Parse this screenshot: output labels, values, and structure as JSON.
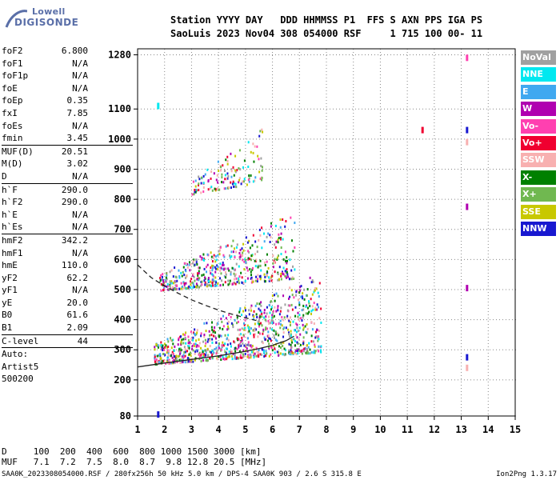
{
  "logo": {
    "line1": "Lowell",
    "line2": "DIGISONDE"
  },
  "header": {
    "line1": "Station YYYY DAY   DDD HHMMSS P1  FFS S AXN PPS IGA PS",
    "line2": "SaoLuis 2023 Nov04 308 054000 RSF     1 715 100 00- 11"
  },
  "params": [
    {
      "k": "foF2",
      "v": "6.800"
    },
    {
      "k": "foF1",
      "v": "N/A"
    },
    {
      "k": "foF1p",
      "v": "N/A"
    },
    {
      "k": "foE",
      "v": "N/A"
    },
    {
      "k": "foEp",
      "v": "0.35"
    },
    {
      "k": "fxI",
      "v": "7.85"
    },
    {
      "k": "foEs",
      "v": "N/A"
    },
    {
      "k": "fmin",
      "v": "3.45",
      "sep": true
    },
    {
      "k": "MUF(D)",
      "v": "20.51"
    },
    {
      "k": "M(D)",
      "v": "3.02"
    },
    {
      "k": "D",
      "v": "N/A",
      "sep": true
    },
    {
      "k": "h`F",
      "v": "290.0"
    },
    {
      "k": "h`F2",
      "v": "290.0"
    },
    {
      "k": "h`E",
      "v": "N/A"
    },
    {
      "k": "h`Es",
      "v": "N/A",
      "sep": true
    },
    {
      "k": "hmF2",
      "v": "342.2"
    },
    {
      "k": "hmF1",
      "v": "N/A"
    },
    {
      "k": "hmE",
      "v": "110.0"
    },
    {
      "k": "yF2",
      "v": "62.2"
    },
    {
      "k": "yF1",
      "v": "N/A"
    },
    {
      "k": "yE",
      "v": "20.0"
    },
    {
      "k": "B0",
      "v": "61.6"
    },
    {
      "k": "B1",
      "v": "2.09",
      "sep": true
    },
    {
      "k": "C-level",
      "v": "44",
      "sep": true
    },
    {
      "k": "Auto:",
      "v": "",
      "txt": true
    },
    {
      "k": "Artist5",
      "v": "",
      "txt": true
    },
    {
      "k": "500200",
      "v": "",
      "txt": true
    }
  ],
  "legend": [
    {
      "label": "NoVal",
      "color": "#a0a0a0"
    },
    {
      "label": "NNE",
      "color": "#00e8f0"
    },
    {
      "label": "E",
      "color": "#40a8f0"
    },
    {
      "label": "W",
      "color": "#b000b0"
    },
    {
      "label": "Vo-",
      "color": "#ff40b0"
    },
    {
      "label": "Vo+",
      "color": "#f00030"
    },
    {
      "label": "SSW",
      "color": "#f8b0b0"
    },
    {
      "label": "X-",
      "color": "#008000"
    },
    {
      "label": "X+",
      "color": "#70b850"
    },
    {
      "label": "SSE",
      "color": "#c8c800"
    },
    {
      "label": "NNW",
      "color": "#1818d0"
    }
  ],
  "chart_data": {
    "type": "scatter",
    "title": "",
    "xlabel": "",
    "ylabel": "",
    "xlim": [
      1,
      15
    ],
    "ylim": [
      80,
      1300
    ],
    "xticks": [
      1,
      2,
      3,
      4,
      5,
      6,
      7,
      8,
      9,
      10,
      11,
      12,
      13,
      14,
      15
    ],
    "yticks": [
      80,
      200,
      300,
      400,
      500,
      600,
      700,
      800,
      900,
      1000,
      1100,
      1280
    ],
    "grid": true,
    "traces": [
      {
        "name": "trace-F-layer",
        "style": "solid",
        "points": [
          [
            1.0,
            243
          ],
          [
            2.0,
            256
          ],
          [
            3.0,
            268
          ],
          [
            4.0,
            280
          ],
          [
            5.0,
            295
          ],
          [
            5.5,
            304
          ],
          [
            6.0,
            315
          ],
          [
            6.5,
            330
          ],
          [
            6.8,
            345
          ]
        ]
      },
      {
        "name": "trace-profile",
        "style": "dashed",
        "points": [
          [
            1.0,
            582
          ],
          [
            1.5,
            540
          ],
          [
            2.0,
            512
          ],
          [
            2.5,
            488
          ],
          [
            3.0,
            466
          ],
          [
            3.5,
            448
          ],
          [
            4.0,
            432
          ],
          [
            4.5,
            418
          ],
          [
            5.0,
            406
          ],
          [
            5.5,
            395
          ]
        ]
      }
    ],
    "echo_regions": [
      {
        "x": [
          1.6,
          7.8
        ],
        "y": [
          255,
          520
        ],
        "density": 1.0
      },
      {
        "x": [
          1.8,
          6.8
        ],
        "y": [
          500,
          720
        ],
        "density": 0.55
      },
      {
        "x": [
          3.0,
          5.6
        ],
        "y": [
          820,
          1000
        ],
        "density": 0.15
      }
    ],
    "markers": [
      {
        "x": 13.2,
        "y": 1270,
        "color": "#ff40b0"
      },
      {
        "x": 13.2,
        "y": 1030,
        "color": "#1818d0"
      },
      {
        "x": 13.2,
        "y": 990,
        "color": "#f8b0b0"
      },
      {
        "x": 13.2,
        "y": 775,
        "color": "#b000b0"
      },
      {
        "x": 13.2,
        "y": 505,
        "color": "#b000b0"
      },
      {
        "x": 13.2,
        "y": 275,
        "color": "#1818d0"
      },
      {
        "x": 13.2,
        "y": 240,
        "color": "#f8b0b0"
      },
      {
        "x": 11.55,
        "y": 1030,
        "color": "#f00030"
      },
      {
        "x": 1.75,
        "y": 1110,
        "color": "#00e8f0"
      },
      {
        "x": 1.75,
        "y": 85,
        "color": "#1818d0"
      }
    ]
  },
  "footer": {
    "d_row": "D     100  200  400  600  800 1000 1500 3000 [km]",
    "muf_row": "MUF   7.1  7.2  7.5  8.0  8.7  9.8 12.8 20.5 [MHz]"
  },
  "bottom": {
    "info": "SAA0K_2023308054000.RSF / 280fx256h 50 kHz 5.0 km / DPS-4 SAA0K 903 / 2.6 S 315.8 E",
    "version": "Ion2Png 1.3.17"
  }
}
